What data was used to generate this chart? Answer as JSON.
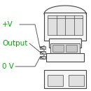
{
  "bg_color": "#ffffff",
  "line_color": "#444444",
  "green_color": "#00aa00",
  "labels": [
    "+V",
    "Output",
    "0 V"
  ],
  "label_fontsize": 7.5,
  "fig_w": 1.3,
  "fig_h": 1.3,
  "dpi": 100
}
